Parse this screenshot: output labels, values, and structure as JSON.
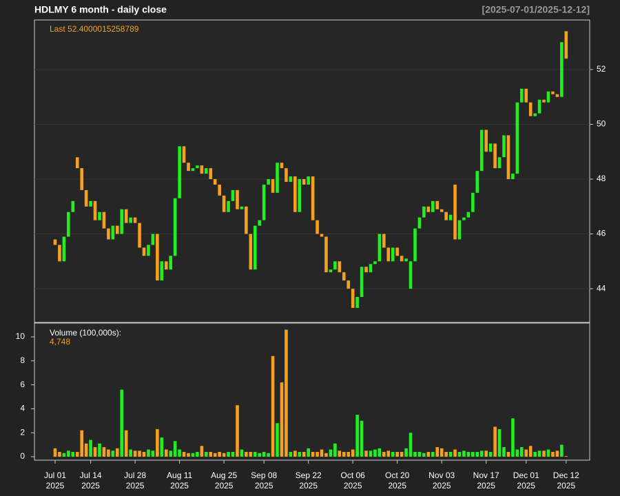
{
  "title": "HDLMY  6 month - daily close",
  "date_range": "[2025-07-01/2025-12-12]",
  "chart_data": [
    {
      "type": "candlestick",
      "annotation": "Last 52.4000015258789",
      "open": [
        45.8,
        45.6,
        45.0,
        45.9,
        46.8,
        48.8,
        48.4,
        47.6,
        47.0,
        47.2,
        46.5,
        46.8,
        46.2,
        45.8,
        46.3,
        46.0,
        46.9,
        46.4,
        46.6,
        46.4,
        45.5,
        45.2,
        45.6,
        46.0,
        44.3,
        45.0,
        44.7,
        45.2,
        47.3,
        49.2,
        48.6,
        48.3,
        48.4,
        48.5,
        48.2,
        48.4,
        48.0,
        47.8,
        47.4,
        46.8,
        47.2,
        47.6,
        46.9,
        47.0,
        46.0,
        44.7,
        46.3,
        46.5,
        47.8,
        48.0,
        47.5,
        48.6,
        48.4,
        47.9,
        48.1,
        46.8,
        48.0,
        47.8,
        48.1,
        46.5,
        46.0,
        45.9,
        44.6,
        44.7,
        45.0,
        44.6,
        44.3,
        44.0,
        43.3,
        43.7,
        44.8,
        44.6,
        44.9,
        45.0,
        46.0,
        45.5,
        45.0,
        45.5,
        45.2,
        45.0,
        44.0,
        45.0,
        46.2,
        46.6,
        47.0,
        46.8,
        47.2,
        46.9,
        46.8,
        46.5,
        47.8,
        45.8,
        46.5,
        46.6,
        46.8,
        47.5,
        48.3,
        49.8,
        49.0,
        49.3,
        48.4,
        48.8,
        49.6,
        48.0,
        48.2,
        50.8,
        51.3,
        50.8,
        50.3,
        50.4,
        50.9,
        50.8,
        51.2,
        51.1,
        51.0,
        53.4
      ],
      "close": [
        45.6,
        45.0,
        45.9,
        46.8,
        47.2,
        48.4,
        47.6,
        47.0,
        47.2,
        46.5,
        46.8,
        46.2,
        45.8,
        46.3,
        46.0,
        46.9,
        46.4,
        46.6,
        46.4,
        45.5,
        45.2,
        45.6,
        46.0,
        44.3,
        45.0,
        44.7,
        45.2,
        47.3,
        49.2,
        48.6,
        48.3,
        48.4,
        48.5,
        48.2,
        48.4,
        48.0,
        47.8,
        47.4,
        46.8,
        47.2,
        47.6,
        46.9,
        47.0,
        46.0,
        44.7,
        46.3,
        46.5,
        47.8,
        48.0,
        47.5,
        48.6,
        48.4,
        47.9,
        48.1,
        46.8,
        48.0,
        47.8,
        48.1,
        46.5,
        46.0,
        45.9,
        44.6,
        44.7,
        45.0,
        44.6,
        44.3,
        44.0,
        43.3,
        43.7,
        44.8,
        44.6,
        44.9,
        45.0,
        46.0,
        45.5,
        45.0,
        45.5,
        45.2,
        45.0,
        45.1,
        45.0,
        46.2,
        46.6,
        47.0,
        46.8,
        47.2,
        46.9,
        46.8,
        46.5,
        46.7,
        45.8,
        46.5,
        46.6,
        46.8,
        47.5,
        48.3,
        49.8,
        49.0,
        49.3,
        48.4,
        48.8,
        49.6,
        48.0,
        48.2,
        50.8,
        51.3,
        50.8,
        50.3,
        50.4,
        50.9,
        50.8,
        51.2,
        51.1,
        51.0,
        53.0,
        52.4
      ],
      "up_color": "#22ee22",
      "down_color": "#f5a020",
      "ylim": [
        42.77,
        53.81
      ],
      "yticks": [
        44,
        46,
        48,
        50,
        52
      ],
      "grid": true,
      "xlim": [
        -4.65,
        120.3
      ]
    },
    {
      "type": "bar",
      "label": "Volume (100,000s):",
      "annotation": "4,748",
      "values": [
        0.7,
        0.4,
        0.3,
        0.5,
        0.4,
        0.4,
        2.2,
        1.1,
        1.4,
        0.8,
        1.1,
        0.8,
        0.6,
        0.5,
        0.7,
        5.6,
        2.2,
        0.6,
        0.5,
        0.5,
        0.4,
        0.6,
        0.5,
        2.3,
        1.6,
        0.6,
        0.5,
        1.3,
        0.6,
        0.4,
        0.3,
        0.3,
        0.4,
        0.9,
        0.4,
        0.4,
        0.3,
        0.4,
        0.3,
        0.4,
        0.4,
        4.3,
        0.6,
        0.4,
        0.4,
        0.4,
        0.3,
        0.4,
        0.3,
        8.4,
        2.8,
        6.2,
        10.6,
        0.4,
        0.5,
        0.4,
        0.4,
        0.7,
        0.4,
        0.4,
        0.6,
        0.3,
        0.6,
        1.1,
        0.5,
        0.4,
        0.4,
        0.6,
        3.5,
        3.0,
        0.5,
        0.5,
        0.6,
        0.7,
        0.4,
        0.5,
        0.4,
        0.4,
        0.4,
        0.7,
        2.0,
        0.4,
        0.4,
        0.3,
        0.4,
        0.4,
        0.8,
        0.7,
        0.4,
        0.4,
        0.6,
        0.4,
        0.5,
        0.4,
        0.4,
        0.4,
        0.5,
        0.5,
        0.4,
        2.5,
        2.3,
        0.8,
        0.4,
        3.2,
        0.6,
        0.8,
        0.6,
        0.9,
        0.4,
        0.5,
        0.5,
        0.6,
        0.4,
        0.5,
        1.0,
        0.05
      ],
      "ylim": [
        -0.29,
        11.15
      ],
      "yticks": [
        0,
        2,
        4,
        6,
        8,
        10
      ],
      "xlim": [
        -4.65,
        120.3
      ],
      "xticks": [
        {
          "value": 0,
          "label": "Jul 01",
          "sublabel": "2025"
        },
        {
          "value": 8,
          "label": "Jul 14",
          "sublabel": "2025"
        },
        {
          "value": 18,
          "label": "Jul 28",
          "sublabel": "2025"
        },
        {
          "value": 28,
          "label": "Aug 11",
          "sublabel": "2025"
        },
        {
          "value": 38,
          "label": "Aug 25",
          "sublabel": "2025"
        },
        {
          "value": 47,
          "label": "Sep 08",
          "sublabel": "2025"
        },
        {
          "value": 57,
          "label": "Sep 22",
          "sublabel": "2025"
        },
        {
          "value": 67,
          "label": "Oct 06",
          "sublabel": "2025"
        },
        {
          "value": 77,
          "label": "Oct 20",
          "sublabel": "2025"
        },
        {
          "value": 87,
          "label": "Nov 03",
          "sublabel": "2025"
        },
        {
          "value": 97,
          "label": "Nov 17",
          "sublabel": "2025"
        },
        {
          "value": 106,
          "label": "Dec 01",
          "sublabel": "2025"
        },
        {
          "value": 115,
          "label": "Dec 12",
          "sublabel": "2025"
        }
      ]
    }
  ]
}
